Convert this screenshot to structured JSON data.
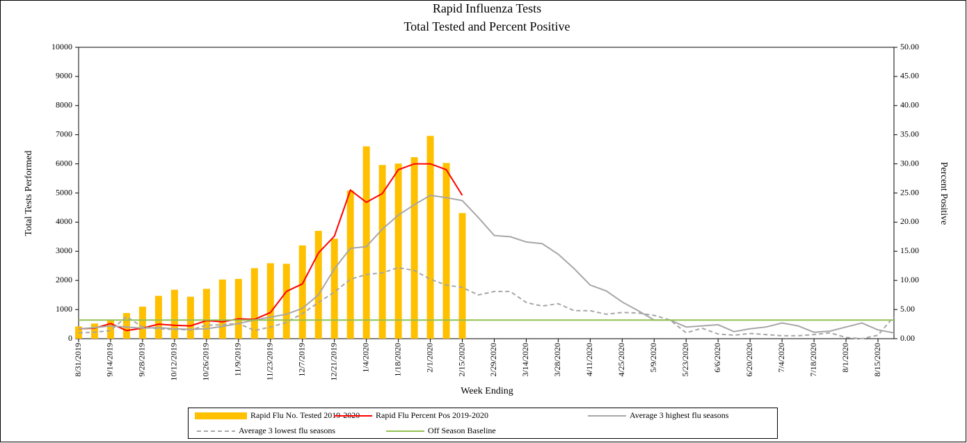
{
  "chart_data": {
    "type": "combo",
    "title": [
      "Rapid Influenza Tests",
      "Total Tested and Percent Positive"
    ],
    "x_label": "Week Ending",
    "y_label": "Total Tests Performed",
    "y2_label": "Percent Positive",
    "categories": [
      "8/31/2019",
      null,
      "9/14/2019",
      null,
      "9/28/2019",
      null,
      "10/12/2019",
      null,
      "10/26/2019",
      null,
      "11/9/2019",
      null,
      "11/23/2019",
      null,
      "12/7/2019",
      null,
      "12/21/2019",
      null,
      "1/4/2020",
      null,
      "1/18/2020",
      null,
      "2/1/2020",
      null,
      "2/15/2020",
      null,
      "2/29/2020",
      null,
      "3/14/2020",
      null,
      "3/28/2020",
      null,
      "4/11/2020",
      null,
      "4/25/2020",
      null,
      "5/9/2020",
      null,
      "5/23/2020",
      null,
      "6/6/2020",
      null,
      "6/20/2020",
      null,
      "7/4/2020",
      null,
      "7/18/2020",
      null,
      "8/1/2020",
      null,
      "8/15/2020",
      null
    ],
    "ylim": [
      0,
      10000
    ],
    "yticks": [
      0,
      1000,
      2000,
      3000,
      4000,
      5000,
      6000,
      7000,
      8000,
      9000,
      10000
    ],
    "y2lim": [
      0,
      50
    ],
    "y2ticks": [
      {
        "value": 0,
        "label": "0.00"
      },
      {
        "value": 5,
        "label": "5.00"
      },
      {
        "value": 10,
        "label": "10.00"
      },
      {
        "value": 15,
        "label": "15.00"
      },
      {
        "value": 20,
        "label": "20.00"
      },
      {
        "value": 25,
        "label": "25.00"
      },
      {
        "value": 30,
        "label": "30.00"
      },
      {
        "value": 35,
        "label": "35.00"
      },
      {
        "value": 40,
        "label": "40.00"
      },
      {
        "value": 45,
        "label": "45.00"
      },
      {
        "value": 50,
        "label": "50.00"
      }
    ],
    "series": [
      {
        "name": "Rapid Flu No. Tested 2019-2020",
        "type": "bar",
        "axis": "y",
        "color": "#FFC000",
        "values": [
          420,
          520,
          650,
          880,
          1100,
          1470,
          1680,
          1440,
          1710,
          2030,
          2050,
          2420,
          2590,
          2570,
          3200,
          3700,
          3430,
          5080,
          6600,
          5960,
          6010,
          6230,
          6960,
          6030,
          4310,
          null,
          null,
          null,
          null,
          null,
          null,
          null,
          null,
          null,
          null,
          null,
          null,
          null,
          null,
          null,
          null,
          null,
          null,
          null,
          null,
          null,
          null,
          null,
          null,
          null,
          null,
          null
        ]
      },
      {
        "name": "Rapid Flu Percent Pos 2019-2020",
        "type": "line",
        "axis": "y2",
        "color": "#FF0000",
        "values": [
          1.7,
          1.8,
          2.6,
          1.4,
          1.8,
          2.5,
          2.3,
          2.2,
          3.1,
          2.9,
          3.4,
          3.3,
          4.5,
          8.1,
          9.4,
          14.7,
          17.6,
          25.5,
          23.4,
          24.9,
          29.0,
          30.0,
          30.0,
          29.0,
          24.6,
          null,
          null,
          null,
          null,
          null,
          null,
          null,
          null,
          null,
          null,
          null,
          null,
          null,
          null,
          null,
          null,
          null,
          null,
          null,
          null,
          null,
          null,
          null,
          null,
          null,
          null,
          null
        ]
      },
      {
        "name": "Average 3 highest flu seasons",
        "type": "line",
        "axis": "y2",
        "color": "#A6A6A6",
        "values": [
          1.7,
          1.9,
          2.2,
          2.0,
          1.8,
          1.9,
          1.7,
          1.6,
          1.7,
          2.1,
          2.6,
          3.2,
          3.7,
          4.2,
          5.2,
          7.5,
          12.0,
          15.5,
          15.8,
          18.8,
          21.2,
          23.0,
          24.6,
          24.2,
          23.7,
          20.8,
          17.7,
          17.5,
          16.6,
          16.3,
          14.5,
          12.0,
          9.2,
          8.2,
          6.3,
          4.8,
          3.2,
          3.2,
          2.0,
          2.2,
          2.4,
          1.2,
          1.7,
          2.0,
          2.7,
          2.2,
          1.1,
          1.3,
          2.0,
          2.7,
          1.5,
          1.0
        ]
      },
      {
        "name": "Average 3 lowest flu seasons",
        "type": "line",
        "axis": "y2",
        "color": "#A6A6A6",
        "dashed": true,
        "values": [
          1.0,
          1.1,
          1.4,
          3.8,
          2.0,
          1.7,
          1.6,
          1.5,
          2.3,
          2.4,
          2.6,
          1.4,
          2.0,
          2.8,
          4.3,
          6.2,
          8.0,
          10.2,
          11.0,
          11.3,
          12.2,
          11.7,
          10.2,
          9.2,
          8.8,
          7.5,
          8.1,
          8.1,
          6.2,
          5.6,
          6.0,
          4.8,
          4.8,
          4.2,
          4.5,
          4.4,
          4.0,
          3.2,
          1.0,
          1.8,
          0.8,
          0.6,
          0.9,
          0.7,
          0.5,
          0.5,
          0.7,
          1.0,
          0.2,
          0.0,
          0.6,
          3.8
        ]
      },
      {
        "name": "Off Season Baseline",
        "type": "line",
        "axis": "y2",
        "color": "#92C050",
        "values": [
          3.2,
          3.2,
          3.2,
          3.2,
          3.2,
          3.2,
          3.2,
          3.2,
          3.2,
          3.2,
          3.2,
          3.2,
          3.2,
          3.2,
          3.2,
          3.2,
          3.2,
          3.2,
          3.2,
          3.2,
          3.2,
          3.2,
          3.2,
          3.2,
          3.2,
          3.2,
          3.2,
          3.2,
          3.2,
          3.2,
          3.2,
          3.2,
          3.2,
          3.2,
          3.2,
          3.2,
          3.2,
          3.2,
          3.2,
          3.2,
          3.2,
          3.2,
          3.2,
          3.2,
          3.2,
          3.2,
          3.2,
          3.2,
          3.2,
          3.2,
          3.2,
          3.2
        ]
      }
    ]
  }
}
